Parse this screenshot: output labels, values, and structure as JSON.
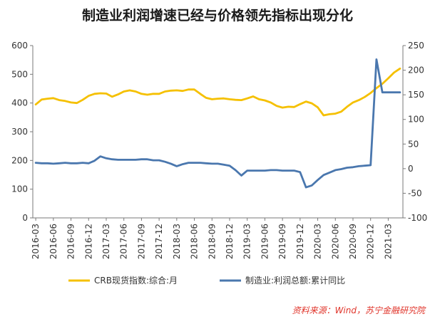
{
  "chart_data": {
    "type": "line",
    "title": "制造业利润增速已经与价格领先指标出现分化",
    "x": [
      "2016-03",
      "2016-04",
      "2016-05",
      "2016-06",
      "2016-07",
      "2016-08",
      "2016-09",
      "2016-10",
      "2016-11",
      "2016-12",
      "2017-01",
      "2017-02",
      "2017-03",
      "2017-04",
      "2017-05",
      "2017-06",
      "2017-07",
      "2017-08",
      "2017-09",
      "2017-10",
      "2017-11",
      "2017-12",
      "2018-01",
      "2018-02",
      "2018-03",
      "2018-04",
      "2018-05",
      "2018-06",
      "2018-07",
      "2018-08",
      "2018-09",
      "2018-10",
      "2018-11",
      "2018-12",
      "2019-01",
      "2019-02",
      "2019-03",
      "2019-04",
      "2019-05",
      "2019-06",
      "2019-07",
      "2019-08",
      "2019-09",
      "2019-10",
      "2019-11",
      "2019-12",
      "2020-01",
      "2020-02",
      "2020-03",
      "2020-04",
      "2020-05",
      "2020-06",
      "2020-07",
      "2020-08",
      "2020-09",
      "2020-10",
      "2020-11",
      "2020-12",
      "2021-01",
      "2021-02",
      "2021-03",
      "2021-04",
      "2021-05"
    ],
    "x_tick_labels": [
      "2016-03",
      "2016-06",
      "2016-09",
      "2016-12",
      "2017-03",
      "2017-06",
      "2017-09",
      "2017-12",
      "2018-03",
      "2018-06",
      "2018-09",
      "2018-12",
      "2019-03",
      "2019-06",
      "2019-09",
      "2019-12",
      "2020-03",
      "2020-06",
      "2020-09",
      "2020-12",
      "2021-03"
    ],
    "y_left": {
      "min": 0,
      "max": 600,
      "ticks": [
        0,
        100,
        200,
        300,
        400,
        500,
        600
      ]
    },
    "y_right": {
      "min": -100,
      "max": 250,
      "ticks": [
        -100,
        -50,
        0,
        50,
        100,
        150,
        200,
        250
      ]
    },
    "series": [
      {
        "name": "CRB现货指数:综合:月",
        "axis": "left",
        "color": "#f5c000",
        "values": [
          395,
          412,
          415,
          417,
          410,
          407,
          402,
          400,
          411,
          425,
          432,
          434,
          433,
          422,
          430,
          440,
          444,
          440,
          432,
          429,
          432,
          432,
          440,
          443,
          444,
          442,
          447,
          447,
          432,
          418,
          413,
          415,
          416,
          413,
          411,
          410,
          416,
          423,
          413,
          409,
          402,
          390,
          384,
          387,
          386,
          396,
          405,
          399,
          385,
          357,
          361,
          363,
          370,
          387,
          402,
          410,
          421,
          435,
          452,
          467,
          486,
          506,
          520
        ]
      },
      {
        "name": "制造业:利润总额:累计同比",
        "axis": "right",
        "color": "#4a77ae",
        "values": [
          12,
          11,
          11,
          10,
          11,
          12,
          11,
          11,
          12,
          11,
          16,
          25,
          21,
          19,
          18,
          18,
          18,
          18,
          19,
          19,
          17,
          17,
          14,
          10,
          5,
          9,
          12,
          12,
          12,
          11,
          10,
          10,
          8,
          6,
          -3,
          -14,
          -4,
          -4,
          -4,
          -4,
          -3,
          -3,
          -4,
          -4,
          -4,
          -7,
          -38,
          -34,
          -23,
          -13,
          -8,
          -3,
          -1,
          2,
          3,
          5,
          6,
          7,
          222,
          155,
          155,
          155,
          155
        ]
      }
    ],
    "legend_position": "bottom",
    "grid": false
  },
  "source_note": "资料来源：Wind，苏宁金融研究院"
}
